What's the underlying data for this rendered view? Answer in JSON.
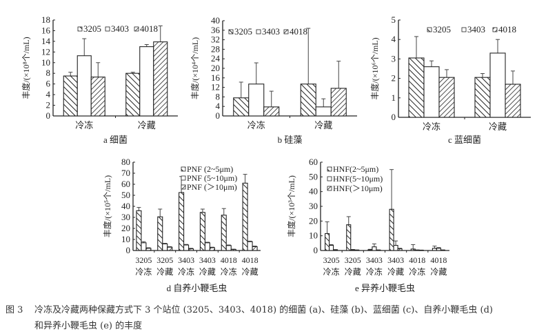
{
  "caption": {
    "figure_number": "图 3",
    "line1": "冷冻及冷藏两种保藏方式下 3 个站位 (3205、3403、4018) 的细菌 (a)、硅藻 (b)、蓝细菌 (c)、自养小鞭毛虫 (d)",
    "line2": "和异养小鞭毛虫 (e) 的丰度"
  },
  "colors": {
    "ink": "#222222",
    "bar_fill": "#ffffff"
  },
  "chart_data": [
    {
      "type": "bar",
      "title": "a 细菌",
      "ylabel": "丰度/(×10⁸个/mL)",
      "xlabel": "",
      "categories": [
        "冷冻",
        "冷藏"
      ],
      "ylim": [
        0,
        18
      ],
      "yticks": [
        0,
        2,
        4,
        6,
        8,
        10,
        12,
        14,
        16,
        18
      ],
      "legend": "top",
      "grid": false,
      "series": [
        {
          "name": "3205",
          "pattern": "back-hatch",
          "values": [
            7.5,
            8.0
          ],
          "error_upper": [
            8.2,
            8.2
          ]
        },
        {
          "name": "3403",
          "pattern": "open",
          "values": [
            11.3,
            13.0
          ],
          "error_upper": [
            14.5,
            13.4
          ]
        },
        {
          "name": "4018",
          "pattern": "fwd-hatch",
          "values": [
            7.3,
            13.9
          ],
          "error_upper": [
            10.0,
            16.9
          ]
        }
      ]
    },
    {
      "type": "bar",
      "title": "b 硅藻",
      "ylabel": "丰度/(×10⁴个/mL)",
      "xlabel": "",
      "categories": [
        "冷冻",
        "冷藏"
      ],
      "ylim": [
        0,
        40
      ],
      "yticks": [
        0,
        4,
        8,
        12,
        16,
        20,
        24,
        28,
        32,
        36,
        40
      ],
      "legend": "top-left",
      "grid": false,
      "series": [
        {
          "name": "3205",
          "pattern": "back-hatch",
          "values": [
            7.6,
            13.4
          ],
          "error_upper": [
            14.2,
            36.8
          ]
        },
        {
          "name": "3403",
          "pattern": "open",
          "values": [
            13.4,
            3.8
          ],
          "error_upper": [
            22.3,
            7.2
          ]
        },
        {
          "name": "4018",
          "pattern": "fwd-hatch",
          "values": [
            3.8,
            11.6
          ],
          "error_upper": [
            10.4,
            23.0
          ]
        }
      ]
    },
    {
      "type": "bar",
      "title": "c 蓝细菌",
      "ylabel": "丰度/(×10⁶个/mL)",
      "xlabel": "",
      "categories": [
        "冷冻",
        "冷藏"
      ],
      "ylim": [
        0,
        5
      ],
      "yticks": [
        0,
        1,
        2,
        3,
        4,
        5
      ],
      "legend": "top",
      "grid": false,
      "series": [
        {
          "name": "3205",
          "pattern": "back-hatch",
          "values": [
            3.05,
            2.05
          ],
          "error_upper": [
            4.15,
            2.25
          ]
        },
        {
          "name": "3403",
          "pattern": "open",
          "values": [
            2.6,
            3.3
          ],
          "error_upper": [
            2.9,
            4.0
          ]
        },
        {
          "name": "4018",
          "pattern": "fwd-hatch",
          "values": [
            2.05,
            1.7
          ],
          "error_upper": [
            2.45,
            2.38
          ]
        }
      ]
    },
    {
      "type": "bar",
      "title": "d 自养小鞭毛虫",
      "ylabel": "丰度/(×10⁵个/mL)",
      "xlabel": "",
      "categories": [
        "3205|冷冻",
        "3205|冷藏",
        "3403|冷冻",
        "3403|冷藏",
        "4018|冷冻",
        "4018|冷藏"
      ],
      "ylim": [
        0,
        80
      ],
      "yticks": [
        0,
        10,
        20,
        30,
        40,
        50,
        60,
        70,
        80
      ],
      "legend": "top-right",
      "grid": false,
      "series": [
        {
          "name": "PNF (2~5μm)",
          "pattern": "back-hatch",
          "values": [
            36,
            30.5,
            52.5,
            34.5,
            32,
            61
          ],
          "error_upper": [
            39,
            37.5,
            67,
            37.5,
            38,
            69
          ]
        },
        {
          "name": "PNF (5~10μm)",
          "pattern": "open",
          "values": [
            7,
            6,
            5,
            7,
            4.5,
            8
          ],
          "error_upper": [
            8,
            6.5,
            5.5,
            7.5,
            5,
            8.5
          ]
        },
        {
          "name": "PNF (＞10μm)",
          "pattern": "fwd-hatch",
          "values": [
            2,
            3,
            1.5,
            2.5,
            1,
            3.5
          ],
          "error_upper": [
            2.5,
            3.5,
            2,
            3,
            1.2,
            4
          ]
        }
      ]
    },
    {
      "type": "bar",
      "title": "e 异养小鞭毛虫",
      "ylabel": "丰度/(×10³个/mL)",
      "xlabel": "",
      "categories": [
        "3205|冷冻",
        "3205|冷藏",
        "3403|冷冻",
        "3403|冷藏",
        "4018|冷冻",
        "4018|冷藏"
      ],
      "ylim": [
        0,
        60
      ],
      "yticks": [
        0,
        10,
        20,
        30,
        40,
        50,
        60
      ],
      "legend": "top-left",
      "grid": false,
      "series": [
        {
          "name": "HNF(2~5μm)",
          "pattern": "back-hatch",
          "values": [
            11.5,
            17.5,
            0.5,
            28,
            1,
            1.5
          ],
          "error_upper": [
            19.5,
            23,
            0.8,
            55,
            4,
            3
          ]
        },
        {
          "name": "HNF(5~10μm)",
          "pattern": "open",
          "values": [
            3.5,
            0.5,
            2.5,
            3.5,
            0.3,
            1.5
          ],
          "error_upper": [
            4,
            0.7,
            4.5,
            6.5,
            0.4,
            2
          ]
        },
        {
          "name": "HNF(＞10μm)",
          "pattern": "fwd-hatch",
          "values": [
            0.5,
            0.3,
            0.3,
            1.2,
            0.2,
            0.3
          ],
          "error_upper": [
            0.6,
            0.4,
            0.4,
            1.5,
            0.3,
            0.4
          ]
        }
      ]
    }
  ]
}
